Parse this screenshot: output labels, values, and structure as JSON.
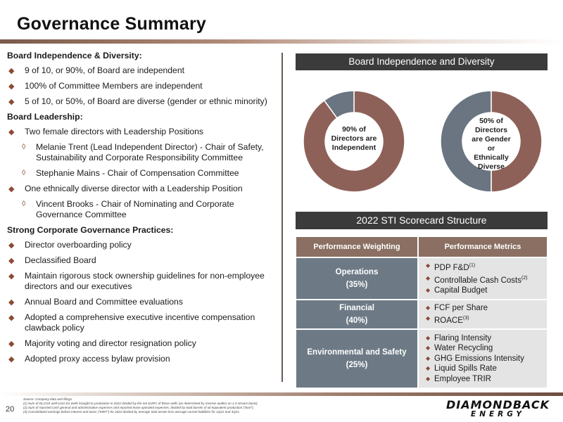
{
  "title": "Governance Summary",
  "left": {
    "section1_head": "Board Independence & Diversity:",
    "section1_bullets": [
      "9 of 10, or 90%, of Board are independent",
      "100% of Committee Members are independent",
      "5 of 10, or 50%, of Board are diverse (gender or ethnic minority)"
    ],
    "section2_head": "Board Leadership:",
    "leader_bullet1": "Two female directors with Leadership Positions",
    "leader_sub1": "Melanie Trent (Lead Independent Director) - Chair of Safety, Sustainability and Corporate Responsibility Committee",
    "leader_sub2": "Stephanie Mains - Chair of Compensation Committee",
    "leader_bullet2": "One ethnically diverse director with a Leadership Position",
    "leader_sub3": "Vincent Brooks - Chair of Nominating and Corporate Governance Committee",
    "section3_head": "Strong Corporate Governance Practices:",
    "section3_bullets": [
      "Director overboarding policy",
      "Declassified Board",
      "Maintain rigorous stock ownership guidelines for non-employee directors and our executives",
      "Annual Board and Committee evaluations",
      "Adopted a comprehensive executive incentive compensation clawback policy",
      "Majority voting and director resignation policy",
      "Adopted proxy access bylaw provision"
    ]
  },
  "board_header": "Board Independence and Diversity",
  "donut1": {
    "label": "90% of Directors are Independent",
    "fraction": 0.9,
    "main_color": "#8e6158",
    "rest_color": "#6a7581"
  },
  "donut2": {
    "label": "50% of Directors are Gender or Ethnically Diverse",
    "fraction": 0.5,
    "main_color": "#8e6158",
    "rest_color": "#6a7581"
  },
  "scorecard_header": "2022 STI Scorecard Structure",
  "scorecard": {
    "col1": "Performance Weighting",
    "col2": "Performance Metrics",
    "rows": [
      {
        "name": "Operations",
        "weight": "(35%)",
        "metrics": [
          "PDP F&D",
          "Controllable Cash Costs",
          "Capital Budget"
        ],
        "sups": [
          "(1)",
          "(2)",
          ""
        ]
      },
      {
        "name": "Financial",
        "weight": "(40%)",
        "metrics": [
          "FCF per Share",
          "ROACE"
        ],
        "sups": [
          "",
          "(3)"
        ]
      },
      {
        "name": "Environmental and Safety",
        "weight": "(25%)",
        "metrics": [
          "Flaring Intensity",
          "Water Recycling",
          "GHG Emissions Intensity",
          "Liquid Spills Rate",
          "Employee TRIR"
        ],
        "sups": [
          "",
          "",
          "",
          "",
          ""
        ]
      }
    ]
  },
  "page_number": "20",
  "footnotes": [
    "Source: Company data and filings.",
    "(1)       Sum of DLCGE well costs for wells brought to production in 2022 divided by the net EUR's of those wells (as determined by reserve auditor on a 3-stream basis).",
    "(2)       Sum of reported cash general and administrative expenses and reported lease operated expenses, divided by total barrels of oil equivalent production (\"boe\").",
    "(3)       Consolidated earnings before interest and taxes (\"EBIT\") for 2022 divided by average total assets less average current liabilities for 1Q22 and 4Q21."
  ],
  "logo": {
    "line1": "DIAMONDBACK",
    "line2": "ENERGY"
  },
  "colors": {
    "accent": "#8a4b33",
    "header_dark": "#3b3b3b",
    "table_head": "#8a6f62",
    "table_cat": "#6d7a86"
  }
}
